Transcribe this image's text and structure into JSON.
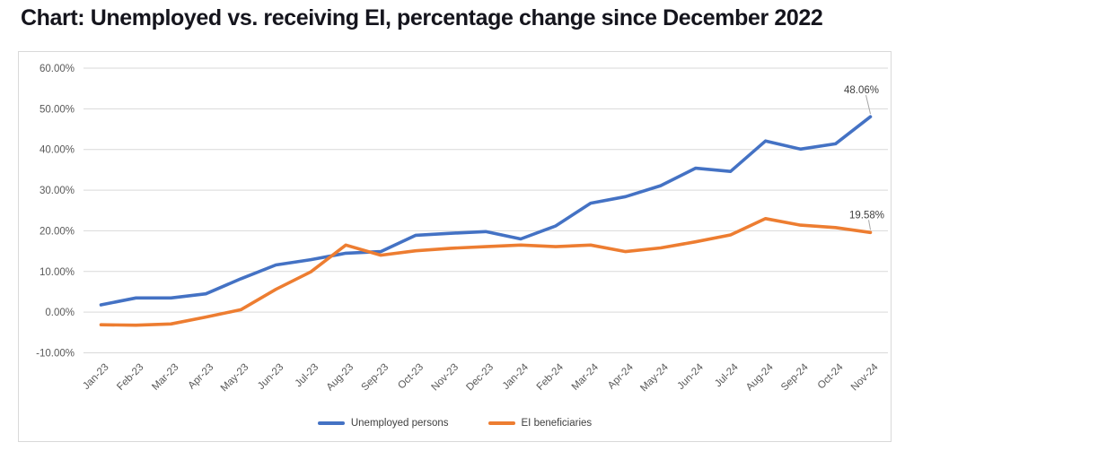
{
  "page": {
    "title": "Chart: Unemployed vs. receiving EI, percentage change since December 2022"
  },
  "colors": {
    "series_blue": "#4472C4",
    "series_orange": "#ED7D31",
    "gridline": "#D9D9D9",
    "axis_text": "#595959",
    "label_text": "#404040",
    "title_text": "#15151d",
    "card_border": "#d9d9d9",
    "leader_line": "#a6a6a6"
  },
  "chart_data": {
    "type": "line",
    "title": "Chart: Unemployed vs. receiving EI, percentage change since December 2022",
    "categories": [
      "Jan-23",
      "Feb-23",
      "Mar-23",
      "Apr-23",
      "May-23",
      "Jun-23",
      "Jul-23",
      "Aug-23",
      "Sep-23",
      "Oct-23",
      "Nov-23",
      "Dec-23",
      "Jan-24",
      "Feb-24",
      "Mar-24",
      "Apr-24",
      "May-24",
      "Jun-24",
      "Jul-24",
      "Aug-24",
      "Sep-24",
      "Oct-24",
      "Nov-24"
    ],
    "series": [
      {
        "name": "Unemployed persons",
        "color": "#4472C4",
        "values": [
          1.8,
          3.5,
          3.5,
          4.5,
          8.2,
          11.6,
          12.9,
          14.5,
          14.9,
          18.9,
          19.4,
          19.8,
          18.0,
          21.2,
          26.8,
          28.4,
          31.1,
          35.4,
          34.6,
          42.1,
          40.1,
          41.4,
          48.06
        ],
        "end_label": "48.06%"
      },
      {
        "name": "EI beneficiaries",
        "color": "#ED7D31",
        "values": [
          -3.1,
          -3.2,
          -2.9,
          -1.2,
          0.6,
          5.6,
          9.9,
          16.5,
          14.0,
          15.1,
          15.7,
          16.1,
          16.5,
          16.1,
          16.5,
          14.9,
          15.8,
          17.3,
          19.0,
          23.0,
          21.4,
          20.8,
          19.58
        ],
        "end_label": "19.58%"
      }
    ],
    "y_ticks": [
      {
        "value": 60,
        "label": "60.00%"
      },
      {
        "value": 50,
        "label": "50.00%"
      },
      {
        "value": 40,
        "label": "40.00%"
      },
      {
        "value": 30,
        "label": "30.00%"
      },
      {
        "value": 20,
        "label": "20.00%"
      },
      {
        "value": 10,
        "label": "10.00%"
      },
      {
        "value": 0,
        "label": "0.00%"
      },
      {
        "value": -10,
        "label": "-10.00%"
      }
    ],
    "ylim": [
      -10,
      60
    ],
    "xlabel": "",
    "ylabel": "",
    "grid": "horizontal",
    "legend_position": "bottom"
  }
}
